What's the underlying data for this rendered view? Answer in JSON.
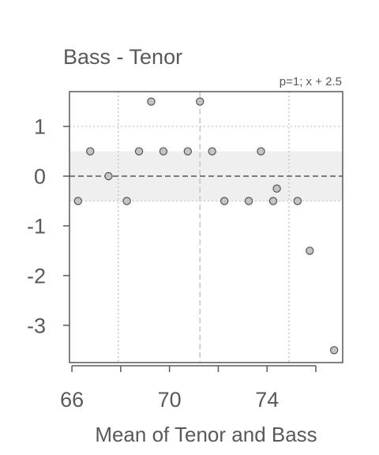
{
  "chart_data": {
    "type": "scatter",
    "title": "Bass - Tenor",
    "annotation": "p=1; x + 2.5",
    "xlabel": "Mean of Tenor and Bass",
    "ylabel": "",
    "xlim": [
      65.9,
      77.1
    ],
    "ylim": [
      -3.75,
      1.7
    ],
    "x_ticks": [
      66,
      70,
      74
    ],
    "x_tick_labels": [
      "66",
      "70",
      "74"
    ],
    "x_minor_ticks": [
      66,
      68,
      70,
      72,
      74,
      76
    ],
    "y_ticks": [
      1,
      0,
      -1,
      -2,
      -3
    ],
    "y_tick_labels": [
      "1",
      "0",
      "-1",
      "-2",
      "-3"
    ],
    "points": [
      {
        "x": 66.25,
        "y": -0.5
      },
      {
        "x": 66.75,
        "y": 0.5
      },
      {
        "x": 67.5,
        "y": 0.0
      },
      {
        "x": 68.25,
        "y": -0.5
      },
      {
        "x": 68.75,
        "y": 0.5
      },
      {
        "x": 69.25,
        "y": 1.5
      },
      {
        "x": 69.75,
        "y": 0.5
      },
      {
        "x": 70.75,
        "y": 0.5
      },
      {
        "x": 71.25,
        "y": 1.5
      },
      {
        "x": 71.75,
        "y": 0.5
      },
      {
        "x": 72.25,
        "y": -0.5
      },
      {
        "x": 73.25,
        "y": -0.5
      },
      {
        "x": 73.75,
        "y": 0.5
      },
      {
        "x": 74.25,
        "y": -0.5
      },
      {
        "x": 74.4,
        "y": -0.25
      },
      {
        "x": 75.25,
        "y": -0.5
      },
      {
        "x": 75.75,
        "y": -1.5
      },
      {
        "x": 76.75,
        "y": -3.5
      }
    ],
    "mean_difference": 0.0,
    "band": [
      -0.5,
      0.5
    ],
    "vertical_reference_lines": [
      67.9,
      71.25,
      74.9
    ],
    "dotted_horizontal_lines": [
      1,
      -0.5
    ],
    "colors": {
      "point_fill": "#c4c4c4",
      "point_stroke": "#555555",
      "band": "#efefef",
      "frame": "#595959",
      "grid": "#cfcfcf",
      "reference": "#c8c8c8",
      "mean_line": "#555555",
      "text": "#595959"
    }
  }
}
